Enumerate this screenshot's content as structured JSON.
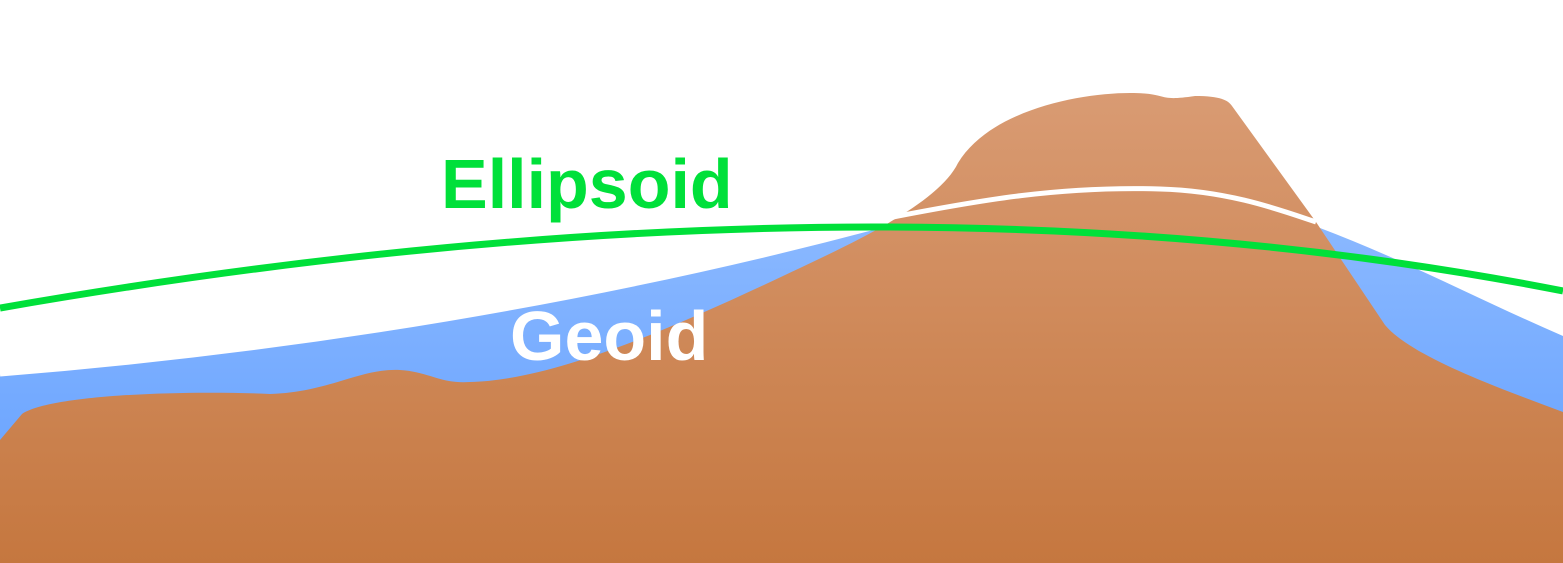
{
  "labels": {
    "ellipsoid": "Ellipsoid",
    "geoid": "Geoid"
  },
  "colors": {
    "background": "#ffffff",
    "ocean_top": "#8ab8ff",
    "ocean_bottom": "#5f9dff",
    "terrain_top": "#d99b73",
    "terrain_bottom": "#c5773f",
    "ellipsoid_line": "#00e03a",
    "geoid_line": "#ffffff",
    "geoid_label": "#ffffff"
  }
}
